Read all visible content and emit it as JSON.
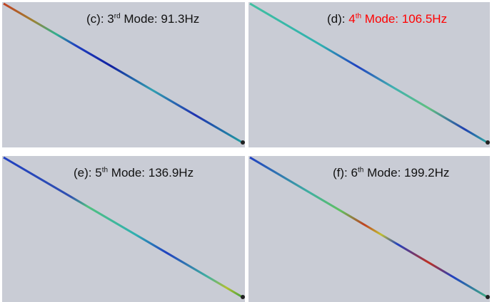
{
  "panels": [
    {
      "prefix": "(c):",
      "number": "3",
      "superscript": "rd",
      "suffix": "Mode: 91.3Hz"
    },
    {
      "prefix": "(d):",
      "number": "4",
      "superscript": "th",
      "suffix": "Mode: 106.5Hz",
      "color": "#ff0000"
    },
    {
      "prefix": "(e):",
      "number": "5",
      "superscript": "th",
      "suffix": "Mode: 136.9Hz"
    },
    {
      "prefix": "(f):",
      "number": "6",
      "superscript": "th",
      "suffix": "Mode: 199.2Hz"
    }
  ]
}
